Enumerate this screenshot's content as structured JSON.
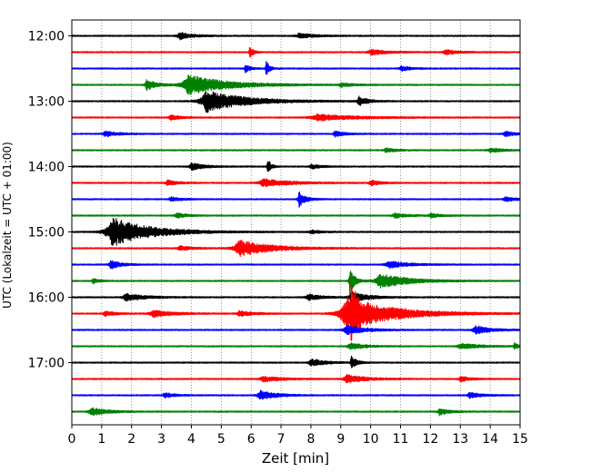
{
  "chart_data": {
    "type": "line",
    "title": "",
    "xlabel": "Zeit  [min]",
    "ylabel": "UTC (Lokalzeit = UTC + 01:00)",
    "xlim": [
      0,
      15
    ],
    "x_ticks": [
      0,
      1,
      2,
      3,
      4,
      5,
      6,
      7,
      8,
      9,
      10,
      11,
      12,
      13,
      14,
      15
    ],
    "y_ticks": [
      "12:00",
      "13:00",
      "14:00",
      "15:00",
      "16:00",
      "17:00"
    ],
    "grid": "vertical dotted at each minute",
    "trace_interval_minutes": 15,
    "trace_colors": [
      "#000000",
      "#ff0000",
      "#0000ff",
      "#008000"
    ],
    "noise_amplitude": 0.07,
    "traces": [
      {
        "start": "12:00",
        "color": "#000000",
        "events": [
          {
            "t": 3.6,
            "amp": 0.4,
            "dur": 0.4
          },
          {
            "t": 7.6,
            "amp": 0.3,
            "dur": 0.5
          }
        ]
      },
      {
        "start": "12:15",
        "color": "#ff0000",
        "events": [
          {
            "t": 5.95,
            "amp": 0.6,
            "dur": 0.12
          },
          {
            "t": 10.0,
            "amp": 0.3,
            "dur": 0.5
          },
          {
            "t": 12.5,
            "amp": 0.25,
            "dur": 0.4
          }
        ]
      },
      {
        "start": "12:30",
        "color": "#0000ff",
        "events": [
          {
            "t": 5.8,
            "amp": 0.5,
            "dur": 0.15
          },
          {
            "t": 6.5,
            "amp": 0.9,
            "dur": 0.1
          },
          {
            "t": 11.0,
            "amp": 0.3,
            "dur": 0.3
          }
        ]
      },
      {
        "start": "12:45",
        "color": "#008000",
        "events": [
          {
            "t": 2.5,
            "amp": 0.6,
            "dur": 0.3
          },
          {
            "t": 3.9,
            "amp": 1.1,
            "dur": 1.2
          },
          {
            "t": 9.0,
            "amp": 0.2,
            "dur": 0.4
          }
        ]
      },
      {
        "start": "13:00",
        "color": "#000000",
        "events": [
          {
            "t": 4.5,
            "amp": 1.2,
            "dur": 1.2
          },
          {
            "t": 9.6,
            "amp": 0.5,
            "dur": 0.3
          }
        ]
      },
      {
        "start": "13:15",
        "color": "#ff0000",
        "events": [
          {
            "t": 3.3,
            "amp": 0.3,
            "dur": 0.3
          },
          {
            "t": 8.2,
            "amp": 0.35,
            "dur": 1.2
          }
        ]
      },
      {
        "start": "13:30",
        "color": "#0000ff",
        "events": [
          {
            "t": 1.1,
            "amp": 0.3,
            "dur": 0.4
          },
          {
            "t": 8.8,
            "amp": 0.3,
            "dur": 0.3
          },
          {
            "t": 14.5,
            "amp": 0.3,
            "dur": 0.3
          }
        ]
      },
      {
        "start": "13:45",
        "color": "#008000",
        "events": [
          {
            "t": 10.5,
            "amp": 0.25,
            "dur": 0.3
          },
          {
            "t": 14.0,
            "amp": 0.25,
            "dur": 0.4
          }
        ]
      },
      {
        "start": "14:00",
        "color": "#000000",
        "events": [
          {
            "t": 4.0,
            "amp": 0.4,
            "dur": 0.4
          },
          {
            "t": 6.55,
            "amp": 0.9,
            "dur": 0.1
          },
          {
            "t": 8.0,
            "amp": 0.25,
            "dur": 0.3
          }
        ]
      },
      {
        "start": "14:15",
        "color": "#ff0000",
        "events": [
          {
            "t": 3.2,
            "amp": 0.3,
            "dur": 0.3
          },
          {
            "t": 6.4,
            "amp": 0.45,
            "dur": 0.8
          },
          {
            "t": 10.0,
            "amp": 0.3,
            "dur": 0.3
          }
        ]
      },
      {
        "start": "14:30",
        "color": "#0000ff",
        "events": [
          {
            "t": 3.3,
            "amp": 0.25,
            "dur": 0.3
          },
          {
            "t": 7.6,
            "amp": 0.85,
            "dur": 0.2
          },
          {
            "t": 14.5,
            "amp": 0.3,
            "dur": 0.3
          }
        ]
      },
      {
        "start": "14:45",
        "color": "#008000",
        "events": [
          {
            "t": 3.5,
            "amp": 0.3,
            "dur": 0.3
          },
          {
            "t": 10.8,
            "amp": 0.25,
            "dur": 0.4
          },
          {
            "t": 12.0,
            "amp": 0.25,
            "dur": 0.3
          }
        ]
      },
      {
        "start": "15:00",
        "color": "#000000",
        "events": [
          {
            "t": 1.35,
            "amp": 1.6,
            "dur": 1.2
          },
          {
            "t": 8.0,
            "amp": 0.2,
            "dur": 0.3
          }
        ]
      },
      {
        "start": "15:15",
        "color": "#ff0000",
        "events": [
          {
            "t": 5.6,
            "amp": 0.9,
            "dur": 1.0
          },
          {
            "t": 3.6,
            "amp": 0.25,
            "dur": 0.4
          }
        ]
      },
      {
        "start": "15:30",
        "color": "#0000ff",
        "events": [
          {
            "t": 1.3,
            "amp": 0.5,
            "dur": 0.3
          },
          {
            "t": 10.6,
            "amp": 0.4,
            "dur": 0.6
          }
        ]
      },
      {
        "start": "15:45",
        "color": "#008000",
        "events": [
          {
            "t": 0.7,
            "amp": 0.3,
            "dur": 0.2
          },
          {
            "t": 9.3,
            "amp": 1.5,
            "dur": 0.15
          },
          {
            "t": 10.3,
            "amp": 0.8,
            "dur": 0.9
          }
        ]
      },
      {
        "start": "16:00",
        "color": "#000000",
        "events": [
          {
            "t": 1.8,
            "amp": 0.4,
            "dur": 0.6
          },
          {
            "t": 7.9,
            "amp": 0.35,
            "dur": 0.4
          },
          {
            "t": 9.35,
            "amp": 0.6,
            "dur": 0.5
          }
        ]
      },
      {
        "start": "16:15",
        "color": "#ff0000",
        "events": [
          {
            "t": 9.2,
            "amp": 1.9,
            "dur": 1.4
          },
          {
            "t": 9.35,
            "amp": 2.8,
            "dur": 0.12
          },
          {
            "t": 2.7,
            "amp": 0.4,
            "dur": 0.6
          },
          {
            "t": 5.6,
            "amp": 0.3,
            "dur": 0.4
          },
          {
            "t": 1.1,
            "amp": 0.3,
            "dur": 0.3
          }
        ]
      },
      {
        "start": "16:30",
        "color": "#0000ff",
        "events": [
          {
            "t": 9.2,
            "amp": 0.5,
            "dur": 0.6
          },
          {
            "t": 13.5,
            "amp": 0.45,
            "dur": 0.5
          }
        ]
      },
      {
        "start": "16:45",
        "color": "#008000",
        "events": [
          {
            "t": 9.3,
            "amp": 0.45,
            "dur": 0.4
          },
          {
            "t": 13.0,
            "amp": 0.3,
            "dur": 0.6
          },
          {
            "t": 14.8,
            "amp": 0.4,
            "dur": 0.1
          }
        ]
      },
      {
        "start": "17:00",
        "color": "#000000",
        "events": [
          {
            "t": 8.0,
            "amp": 0.45,
            "dur": 0.4
          },
          {
            "t": 9.35,
            "amp": 0.8,
            "dur": 0.15
          }
        ]
      },
      {
        "start": "17:15",
        "color": "#ff0000",
        "events": [
          {
            "t": 6.4,
            "amp": 0.3,
            "dur": 0.6
          },
          {
            "t": 9.2,
            "amp": 0.45,
            "dur": 0.6
          },
          {
            "t": 13.0,
            "amp": 0.3,
            "dur": 0.3
          }
        ]
      },
      {
        "start": "17:30",
        "color": "#0000ff",
        "events": [
          {
            "t": 3.1,
            "amp": 0.3,
            "dur": 0.3
          },
          {
            "t": 6.3,
            "amp": 0.5,
            "dur": 0.5
          },
          {
            "t": 13.3,
            "amp": 0.3,
            "dur": 0.4
          }
        ]
      },
      {
        "start": "17:45",
        "color": "#008000",
        "events": [
          {
            "t": 0.65,
            "amp": 0.45,
            "dur": 0.5
          },
          {
            "t": 12.3,
            "amp": 0.4,
            "dur": 0.3
          }
        ]
      }
    ]
  }
}
